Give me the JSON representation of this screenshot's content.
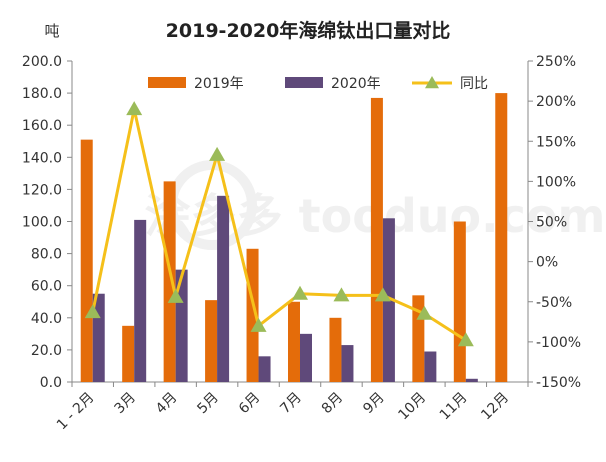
{
  "chart_data": {
    "type": "bar",
    "title": "2019-2020年海绵钛出口量对比",
    "left_unit": "吨",
    "categories": [
      "1 - 2月",
      "3月",
      "4月",
      "5月",
      "6月",
      "7月",
      "8月",
      "9月",
      "10月",
      "11月",
      "12月"
    ],
    "series": [
      {
        "name": "2019年",
        "kind": "bar",
        "axis": "left",
        "color": "#E46C0A",
        "values": [
          151.0,
          35.0,
          125.0,
          51.0,
          83.0,
          50.0,
          40.0,
          177.0,
          54.0,
          100.0,
          180.0
        ]
      },
      {
        "name": "2020年",
        "kind": "bar",
        "axis": "left",
        "color": "#5F497A",
        "values": [
          55.0,
          101.0,
          70.0,
          116.0,
          16.0,
          30.0,
          23.0,
          102.0,
          19.0,
          2.0,
          null
        ]
      },
      {
        "name": "同比",
        "kind": "line",
        "axis": "right",
        "color": "#F5C01A",
        "marker_color": "#9BBB59",
        "values": [
          -63.0,
          190.0,
          -44.0,
          133.0,
          -80.0,
          -40.0,
          -42.0,
          -42.0,
          -65.0,
          -98.0,
          null
        ]
      }
    ],
    "left_axis": {
      "ylim": [
        0,
        200
      ],
      "ticks": [
        "0.0",
        "20.0",
        "40.0",
        "60.0",
        "80.0",
        "100.0",
        "120.0",
        "140.0",
        "160.0",
        "180.0",
        "200.0"
      ]
    },
    "right_axis": {
      "ylim": [
        -150,
        250
      ],
      "ticks": [
        "-150%",
        "-100%",
        "-50%",
        "0%",
        "50%",
        "100%",
        "150%",
        "200%",
        "250%"
      ]
    },
    "legend_position": "top",
    "grid": false,
    "watermark": "涂多多 tooduo.com"
  }
}
